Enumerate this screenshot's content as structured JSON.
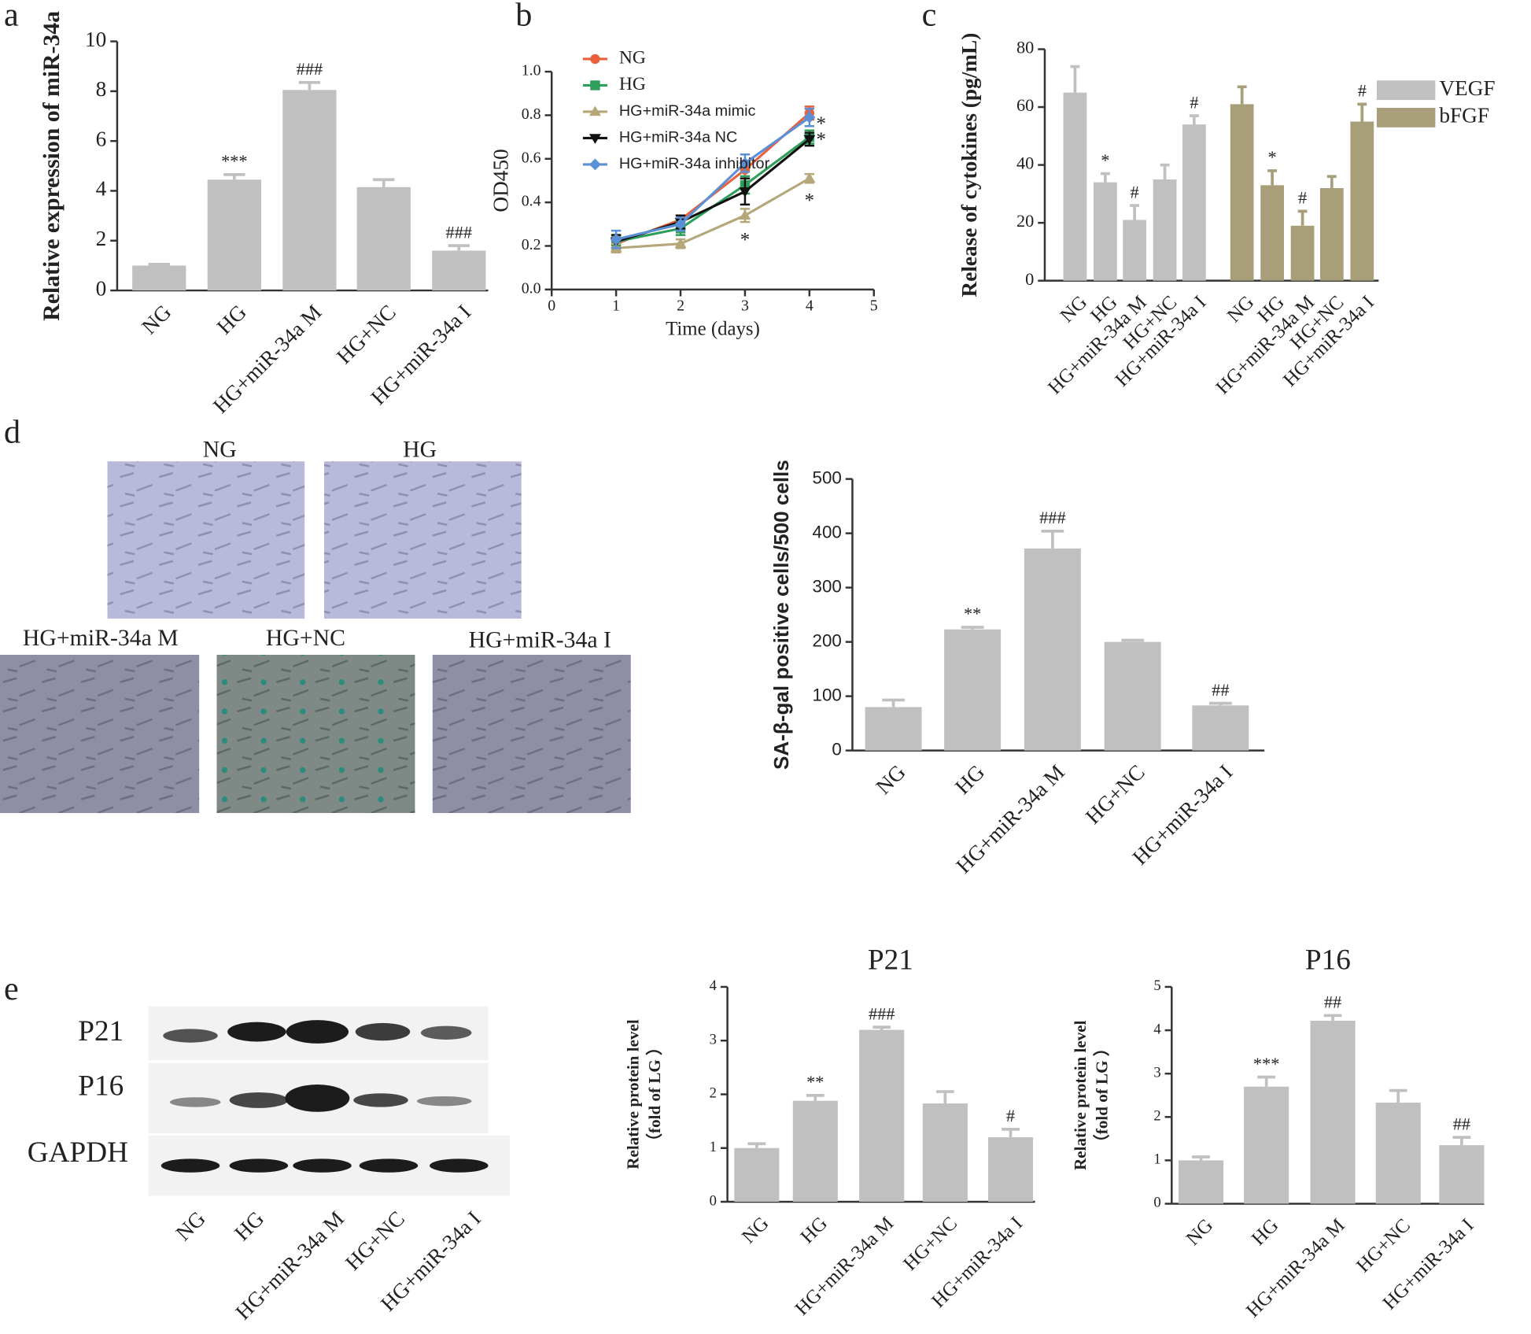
{
  "panel_labels": [
    "a",
    "b",
    "c",
    "d",
    "e"
  ],
  "micrographs": {
    "labels": [
      "NG",
      "HG",
      "HG+miR-34a M",
      "HG+NC",
      "HG+miR-34a I"
    ]
  },
  "blot": {
    "rows": [
      "P21",
      "P16",
      "GAPDH"
    ],
    "lanes": [
      "NG",
      "HG",
      "HG+miR-34a M",
      "HG+NC",
      "HG+miR-34a I"
    ]
  },
  "chart_data": [
    {
      "type": "bar",
      "ylabel": [
        "Relative expression of miR-34a"
      ],
      "color": "#c0c0c0",
      "categories": [
        "NG",
        "HG",
        "HG+miR-34a M",
        "HG+NC",
        "HG+miR-34a I"
      ],
      "values": [
        1.0,
        4.45,
        8.05,
        4.15,
        1.6
      ],
      "errors": [
        0.05,
        0.2,
        0.3,
        0.3,
        0.2
      ],
      "annotations": [
        null,
        "***",
        "###",
        null,
        "###"
      ],
      "ylim": [
        0,
        10
      ],
      "yticks": [
        0,
        2,
        4,
        6,
        8,
        10
      ]
    },
    {
      "type": "line",
      "xlabel": "Time (days)",
      "ylabel": [
        "OD450"
      ],
      "x": [
        1,
        2,
        3,
        4
      ],
      "xlim": [
        0,
        5
      ],
      "xticks": [
        0,
        1,
        2,
        3,
        4,
        5
      ],
      "ylim": [
        0,
        1.0
      ],
      "yticks": [
        {
          "value": 0,
          "label": "0.0"
        },
        0.2,
        0.4,
        0.6,
        0.8,
        {
          "value": 1.0,
          "label": "1.0"
        }
      ],
      "series": [
        {
          "name": "NG",
          "color": "#e8603c",
          "marker": "circle",
          "values": [
            0.21,
            0.32,
            0.55,
            0.81
          ],
          "errors": [
            0.03,
            0.02,
            0.04,
            0.03
          ],
          "annotations": [
            null,
            null,
            null,
            null
          ]
        },
        {
          "name": "HG",
          "color": "#2e9e5b",
          "marker": "square",
          "values": [
            0.22,
            0.28,
            0.48,
            0.7
          ],
          "errors": [
            0.03,
            0.03,
            0.04,
            0.03
          ],
          "annotations": [
            null,
            null,
            null,
            "*"
          ]
        },
        {
          "name": "HG+miR-34a mimic",
          "color": "#b5a77a",
          "marker": "triangle",
          "values": [
            0.19,
            0.21,
            0.34,
            0.51
          ],
          "errors": [
            0.02,
            0.02,
            0.03,
            0.02
          ],
          "annotations": [
            null,
            null,
            "*",
            "*"
          ]
        },
        {
          "name": "HG+miR-34a NC",
          "color": "#111111",
          "marker": "triangle-down",
          "values": [
            0.22,
            0.31,
            0.45,
            0.69
          ],
          "errors": [
            0.03,
            0.03,
            0.06,
            0.03
          ],
          "annotations": [
            null,
            null,
            null,
            "*"
          ]
        },
        {
          "name": "HG+miR-34a inhibitor",
          "color": "#5b8fd6",
          "marker": "diamond",
          "values": [
            0.23,
            0.3,
            0.58,
            0.79
          ],
          "errors": [
            0.04,
            0.03,
            0.04,
            0.04
          ],
          "annotations": [
            null,
            null,
            null,
            null
          ]
        }
      ]
    },
    {
      "type": "bar",
      "ylabel": [
        "Release of cytokines (pg/mL)"
      ],
      "categories": [
        "NG",
        "HG",
        "HG+miR-34a M",
        "HG+NC",
        "HG+miR-34a I"
      ],
      "ylim": [
        0,
        80
      ],
      "yticks": [
        0,
        20,
        40,
        60,
        80
      ],
      "series": [
        {
          "name": "VEGF",
          "color": "#c0c0c0",
          "values": [
            65,
            34,
            21,
            35,
            54
          ],
          "errors": [
            9,
            3,
            5,
            5,
            3
          ],
          "annotations": [
            null,
            "*",
            "#",
            null,
            "#"
          ]
        },
        {
          "name": "bFGF",
          "color": "#a89f7a",
          "values": [
            61,
            33,
            19,
            32,
            55
          ],
          "errors": [
            6,
            5,
            5,
            4,
            6
          ],
          "annotations": [
            null,
            "*",
            "#",
            null,
            "#"
          ]
        }
      ]
    },
    {
      "type": "bar",
      "ylabel": [
        "SA-β-gal positive cells/500 cells"
      ],
      "color": "#c0c0c0",
      "categories": [
        "NG",
        "HG",
        "HG+miR-34a M",
        "HG+NC",
        "HG+miR-34a I"
      ],
      "values": [
        80,
        223,
        372,
        200,
        83
      ],
      "errors": [
        13,
        4,
        32,
        3,
        4
      ],
      "annotations": [
        null,
        "**",
        "###",
        null,
        "##"
      ],
      "ylim": [
        0,
        500
      ],
      "yticks": [
        0,
        100,
        200,
        300,
        400,
        500
      ]
    },
    {
      "type": "bar",
      "title": "P21",
      "ylabel": [
        "Relative protein level",
        "（fold of LG ）"
      ],
      "color": "#c0c0c0",
      "categories": [
        "NG",
        "HG",
        "HG+miR-34a M",
        "HG+NC",
        "HG+miR-34a I"
      ],
      "values": [
        1.0,
        1.88,
        3.2,
        1.83,
        1.2
      ],
      "errors": [
        0.08,
        0.1,
        0.05,
        0.22,
        0.15
      ],
      "annotations": [
        null,
        "**",
        "###",
        null,
        "#"
      ],
      "ylim": [
        0,
        4
      ],
      "yticks": [
        0,
        1,
        2,
        3,
        4
      ]
    },
    {
      "type": "bar",
      "title": "P16",
      "ylabel": [
        "Relative protein level",
        "（fold of LG ）"
      ],
      "color": "#c0c0c0",
      "categories": [
        "NG",
        "HG",
        "HG+miR-34a M",
        "HG+NC",
        "HG+miR-34a I"
      ],
      "values": [
        1.0,
        2.7,
        4.22,
        2.33,
        1.35
      ],
      "errors": [
        0.08,
        0.22,
        0.12,
        0.28,
        0.18
      ],
      "annotations": [
        null,
        "***",
        "##",
        null,
        "##"
      ],
      "ylim": [
        0,
        5
      ],
      "yticks": [
        0,
        1,
        2,
        3,
        4,
        5
      ]
    }
  ]
}
